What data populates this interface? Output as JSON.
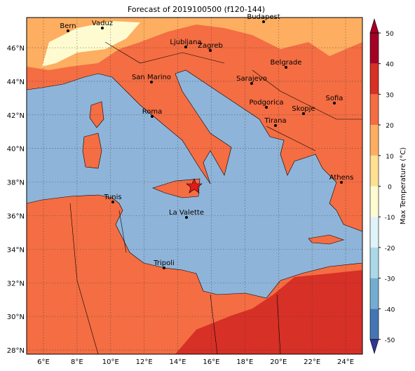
{
  "map": {
    "title": "Forecast of 2019100500 (f120-144)",
    "xlim": [
      5,
      25
    ],
    "ylim": [
      27.75,
      47.8
    ],
    "xticks": [
      {
        "value": 6,
        "label": "6°E"
      },
      {
        "value": 8,
        "label": "8°E"
      },
      {
        "value": 10,
        "label": "10°E"
      },
      {
        "value": 12,
        "label": "12°E"
      },
      {
        "value": 14,
        "label": "14°E"
      },
      {
        "value": 16,
        "label": "16°E"
      },
      {
        "value": 18,
        "label": "18°E"
      },
      {
        "value": 20,
        "label": "20°E"
      },
      {
        "value": 22,
        "label": "22°E"
      },
      {
        "value": 24,
        "label": "24°E"
      }
    ],
    "yticks": [
      {
        "value": 28,
        "label": "28°N"
      },
      {
        "value": 30,
        "label": "30°N"
      },
      {
        "value": 32,
        "label": "32°N"
      },
      {
        "value": 34,
        "label": "34°N"
      },
      {
        "value": 36,
        "label": "36°N"
      },
      {
        "value": 38,
        "label": "38°N"
      },
      {
        "value": 40,
        "label": "40°N"
      },
      {
        "value": 42,
        "label": "42°N"
      },
      {
        "value": 44,
        "label": "44°N"
      },
      {
        "value": 46,
        "label": "46°N"
      }
    ],
    "cities": [
      "Bern",
      "Vaduz",
      "Budapest",
      "Ljubljana",
      "Zagreb",
      "Belgrade",
      "San Marino",
      "Sarajevo",
      "Roma",
      "Podgorica",
      "Sofia",
      "Skopje",
      "Tirana",
      "Athens",
      "Tunis",
      "La Valette",
      "Tripoli"
    ],
    "colorbar": {
      "label": "Max Temperature (°C)",
      "ticks": [
        -50,
        -40,
        -30,
        -20,
        -10,
        0,
        10,
        20,
        30,
        40,
        50
      ],
      "colors": [
        "#313695",
        "#4575b4",
        "#74add1",
        "#abd9e9",
        "#e0f3f8",
        "#fffbd0",
        "#fee090",
        "#fdae61",
        "#f46d43",
        "#d73027",
        "#a50026"
      ]
    }
  }
}
